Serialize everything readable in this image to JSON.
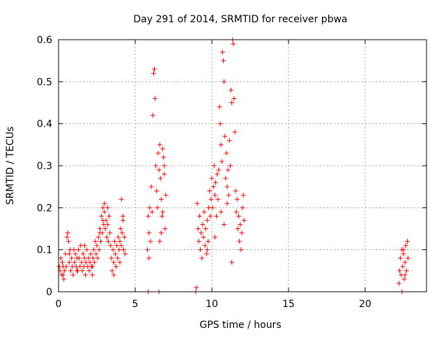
{
  "chart_data": {
    "type": "scatter",
    "title": "Day 291 of 2014, SRMTID for receiver pbwa",
    "xlabel": "GPS time / hours",
    "ylabel": "SRMTID / TECUs",
    "xlim": [
      0,
      24
    ],
    "ylim": [
      0,
      0.6
    ],
    "xticks": [
      0,
      5,
      10,
      15,
      20
    ],
    "xtick_labels": [
      "0",
      "5",
      "10",
      "15",
      "20"
    ],
    "yticks": [
      0,
      0.1,
      0.2,
      0.3,
      0.4,
      0.5,
      0.6
    ],
    "ytick_labels": [
      "0",
      "0.1",
      "0.2",
      "0.3",
      "0.4",
      "0.5",
      "0.6"
    ],
    "grid": true,
    "marker": "+",
    "series": [
      {
        "name": "SRMTID",
        "color": "#ff0000",
        "points": [
          [
            0.05,
            0.06
          ],
          [
            0.1,
            0.05
          ],
          [
            0.15,
            0.08
          ],
          [
            0.2,
            0.04
          ],
          [
            0.25,
            0.07
          ],
          [
            0.3,
            0.06
          ],
          [
            0.35,
            0.03
          ],
          [
            0.4,
            0.05
          ],
          [
            0.45,
            0.09
          ],
          [
            0.5,
            0.06
          ],
          [
            0.55,
            0.13
          ],
          [
            0.6,
            0.14
          ],
          [
            0.65,
            0.12
          ],
          [
            0.7,
            0.07
          ],
          [
            0.75,
            0.1
          ],
          [
            0.8,
            0.05
          ],
          [
            0.85,
            0.08
          ],
          [
            0.9,
            0.06
          ],
          [
            0.95,
            0.04
          ],
          [
            1.0,
            0.1
          ],
          [
            1.05,
            0.07
          ],
          [
            1.1,
            0.09
          ],
          [
            1.15,
            0.06
          ],
          [
            1.2,
            0.08
          ],
          [
            1.25,
            0.05
          ],
          [
            1.3,
            0.1
          ],
          [
            1.35,
            0.08
          ],
          [
            1.4,
            0.06
          ],
          [
            1.45,
            0.11
          ],
          [
            1.5,
            0.07
          ],
          [
            1.55,
            0.05
          ],
          [
            1.6,
            0.09
          ],
          [
            1.65,
            0.06
          ],
          [
            1.7,
            0.08
          ],
          [
            1.75,
            0.04
          ],
          [
            1.8,
            0.07
          ],
          [
            1.85,
            0.1
          ],
          [
            1.9,
            0.06
          ],
          [
            1.95,
            0.08
          ],
          [
            2.0,
            0.05
          ],
          [
            2.05,
            0.07
          ],
          [
            2.1,
            0.09
          ],
          [
            2.15,
            0.06
          ],
          [
            2.2,
            0.04
          ],
          [
            2.25,
            0.08
          ],
          [
            2.3,
            0.1
          ],
          [
            2.35,
            0.07
          ],
          [
            2.4,
            0.12
          ],
          [
            2.45,
            0.09
          ],
          [
            2.5,
            0.11
          ],
          [
            2.55,
            0.08
          ],
          [
            2.6,
            0.13
          ],
          [
            2.65,
            0.1
          ],
          [
            2.7,
            0.15
          ],
          [
            2.75,
            0.12
          ],
          [
            2.8,
            0.18
          ],
          [
            2.85,
            0.14
          ],
          [
            2.9,
            0.2
          ],
          [
            2.95,
            0.16
          ],
          [
            3.0,
            0.21
          ],
          [
            3.05,
            0.15
          ],
          [
            3.1,
            0.17
          ],
          [
            3.15,
            0.13
          ],
          [
            3.2,
            0.16
          ],
          [
            3.25,
            0.12
          ],
          [
            3.3,
            0.18
          ],
          [
            3.35,
            0.14
          ],
          [
            3.4,
            0.11
          ],
          [
            3.45,
            0.08
          ],
          [
            3.5,
            0.05
          ],
          [
            3.55,
            0.1
          ],
          [
            3.6,
            0.07
          ],
          [
            3.65,
            0.12
          ],
          [
            3.7,
            0.09
          ],
          [
            3.75,
            0.06
          ],
          [
            3.8,
            0.11
          ],
          [
            3.85,
            0.08
          ],
          [
            3.9,
            0.13
          ],
          [
            3.95,
            0.1
          ],
          [
            4.0,
            0.12
          ],
          [
            4.05,
            0.15
          ],
          [
            4.1,
            0.11
          ],
          [
            4.15,
            0.14
          ],
          [
            4.2,
            0.18
          ],
          [
            4.25,
            0.1
          ],
          [
            4.3,
            0.13
          ],
          [
            4.35,
            0.09
          ],
          [
            4.1,
            0.22
          ],
          [
            4.2,
            0.17
          ],
          [
            3.0,
            0.19
          ],
          [
            0.3,
            0.04
          ],
          [
            0.7,
            0.09
          ],
          [
            1.2,
            0.05
          ],
          [
            1.7,
            0.11
          ],
          [
            2.2,
            0.06
          ],
          [
            2.7,
            0.14
          ],
          [
            3.2,
            0.2
          ],
          [
            3.6,
            0.04
          ],
          [
            4.0,
            0.07
          ],
          [
            2.9,
            0.17
          ],
          [
            5.8,
            0.1
          ],
          [
            5.85,
            0.18
          ],
          [
            5.9,
            0.08
          ],
          [
            5.95,
            0.2
          ],
          [
            6.0,
            0.12
          ],
          [
            6.05,
            0.25
          ],
          [
            6.1,
            0.19
          ],
          [
            6.15,
            0.42
          ],
          [
            6.2,
            0.52
          ],
          [
            6.25,
            0.53
          ],
          [
            6.3,
            0.46
          ],
          [
            6.35,
            0.3
          ],
          [
            6.4,
            0.24
          ],
          [
            6.45,
            0.2
          ],
          [
            6.5,
            0.33
          ],
          [
            6.55,
            0.29
          ],
          [
            6.6,
            0.35
          ],
          [
            6.65,
            0.27
          ],
          [
            6.7,
            0.22
          ],
          [
            6.75,
            0.18
          ],
          [
            6.8,
            0.34
          ],
          [
            6.85,
            0.32
          ],
          [
            6.9,
            0.28
          ],
          [
            6.95,
            0.15
          ],
          [
            7.0,
            0.23
          ],
          [
            6.6,
            0.12
          ],
          [
            6.7,
            0.14
          ],
          [
            6.8,
            0.19
          ],
          [
            6.9,
            0.3
          ],
          [
            5.9,
            0.14
          ],
          [
            5.85,
            0.0
          ],
          [
            6.55,
            0.0
          ],
          [
            8.95,
            0.0
          ],
          [
            9.0,
            0.01
          ],
          [
            9.05,
            0.21
          ],
          [
            9.1,
            0.15
          ],
          [
            9.15,
            0.12
          ],
          [
            9.2,
            0.18
          ],
          [
            9.25,
            0.1
          ],
          [
            9.3,
            0.14
          ],
          [
            9.35,
            0.08
          ],
          [
            9.4,
            0.16
          ],
          [
            9.45,
            0.13
          ],
          [
            9.5,
            0.19
          ],
          [
            9.55,
            0.11
          ],
          [
            9.6,
            0.15
          ],
          [
            9.65,
            0.09
          ],
          [
            9.7,
            0.17
          ],
          [
            9.75,
            0.12
          ],
          [
            9.8,
            0.2
          ],
          [
            9.85,
            0.24
          ],
          [
            9.9,
            0.18
          ],
          [
            9.95,
            0.22
          ],
          [
            10.0,
            0.27
          ],
          [
            10.05,
            0.2
          ],
          [
            10.1,
            0.25
          ],
          [
            10.15,
            0.3
          ],
          [
            10.2,
            0.23
          ],
          [
            10.25,
            0.26
          ],
          [
            10.3,
            0.18
          ],
          [
            10.35,
            0.28
          ],
          [
            10.4,
            0.22
          ],
          [
            10.45,
            0.29
          ],
          [
            10.5,
            0.44
          ],
          [
            10.55,
            0.4
          ],
          [
            10.6,
            0.35
          ],
          [
            10.65,
            0.31
          ],
          [
            10.7,
            0.57
          ],
          [
            10.75,
            0.55
          ],
          [
            10.8,
            0.5
          ],
          [
            10.85,
            0.37
          ],
          [
            10.9,
            0.27
          ],
          [
            10.95,
            0.33
          ],
          [
            11.0,
            0.25
          ],
          [
            11.05,
            0.29
          ],
          [
            11.1,
            0.23
          ],
          [
            11.15,
            0.36
          ],
          [
            11.2,
            0.3
          ],
          [
            11.25,
            0.48
          ],
          [
            11.3,
            0.45
          ],
          [
            11.35,
            0.6
          ],
          [
            11.4,
            0.59
          ],
          [
            11.45,
            0.46
          ],
          [
            11.5,
            0.38
          ],
          [
            11.55,
            0.24
          ],
          [
            11.6,
            0.19
          ],
          [
            11.65,
            0.22
          ],
          [
            11.7,
            0.15
          ],
          [
            11.75,
            0.18
          ],
          [
            11.8,
            0.12
          ],
          [
            11.85,
            0.16
          ],
          [
            11.9,
            0.1
          ],
          [
            11.95,
            0.14
          ],
          [
            12.0,
            0.2
          ],
          [
            12.05,
            0.23
          ],
          [
            12.1,
            0.17
          ],
          [
            11.3,
            0.07
          ],
          [
            10.6,
            0.19
          ],
          [
            10.2,
            0.13
          ],
          [
            9.7,
            0.1
          ],
          [
            11.0,
            0.21
          ],
          [
            10.8,
            0.16
          ],
          [
            22.2,
            0.02
          ],
          [
            22.25,
            0.05
          ],
          [
            22.3,
            0.08
          ],
          [
            22.35,
            0.04
          ],
          [
            22.4,
            0.1
          ],
          [
            22.45,
            0.06
          ],
          [
            22.5,
            0.09
          ],
          [
            22.55,
            0.03
          ],
          [
            22.6,
            0.07
          ],
          [
            22.65,
            0.11
          ],
          [
            22.7,
            0.05
          ],
          [
            22.75,
            0.12
          ],
          [
            22.8,
            0.08
          ],
          [
            22.4,
            0.0
          ],
          [
            22.5,
            0.1
          ],
          [
            22.6,
            0.04
          ]
        ]
      }
    ]
  }
}
